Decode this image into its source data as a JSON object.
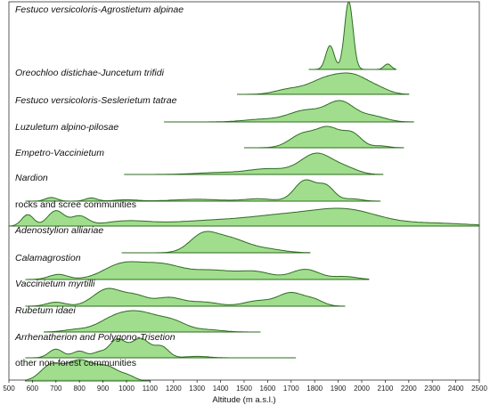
{
  "chart_data": {
    "type": "ridgeline-density",
    "xlabel": "Altitude (m a.s.l.)",
    "xlim": [
      500,
      2500
    ],
    "xticks": [
      500,
      600,
      700,
      800,
      900,
      1000,
      1100,
      1200,
      1300,
      1400,
      1500,
      1600,
      1700,
      1800,
      1900,
      2000,
      2100,
      2200,
      2300,
      2400,
      2500
    ],
    "grid": false,
    "legend": "none",
    "fill_color": "#8fd87a",
    "line_color": "#2f6b22",
    "ridges": [
      {
        "name": "Festuco versicoloris-Agrostietum alpinae",
        "italic": true,
        "range": [
          1775,
          2145
        ],
        "peaks": [
          [
            1865,
            0.35,
            18
          ],
          [
            1945,
            1.0,
            18
          ],
          [
            2110,
            0.08,
            15
          ]
        ]
      },
      {
        "name": "Oreochloo distichae-Juncetum trifidi",
        "italic": true,
        "range": [
          1470,
          2200
        ],
        "peaks": [
          [
            1680,
            0.12,
            55
          ],
          [
            1860,
            0.5,
            85
          ],
          [
            1980,
            0.4,
            65
          ],
          [
            2080,
            0.1,
            45
          ]
        ]
      },
      {
        "name": "Festuco versicoloris-Seslerietum tatrae",
        "italic": true,
        "range": [
          1160,
          2220
        ],
        "peaks": [
          [
            1580,
            0.06,
            80
          ],
          [
            1760,
            0.25,
            70
          ],
          [
            1910,
            0.45,
            60
          ],
          [
            2050,
            0.12,
            55
          ]
        ]
      },
      {
        "name": "Luzuletum alpino-pilosae",
        "italic": true,
        "range": [
          1500,
          2180
        ],
        "peaks": [
          [
            1750,
            0.3,
            55
          ],
          [
            1860,
            0.42,
            50
          ],
          [
            1960,
            0.3,
            40
          ],
          [
            2080,
            0.04,
            35
          ]
        ]
      },
      {
        "name": "Empetro-Vaccinietum",
        "italic": true,
        "range": [
          990,
          2090
        ],
        "peaks": [
          [
            1400,
            0.05,
            100
          ],
          [
            1600,
            0.14,
            80
          ],
          [
            1810,
            0.55,
            70
          ],
          [
            1940,
            0.12,
            50
          ]
        ]
      },
      {
        "name": "Nardion",
        "italic": true,
        "range": [
          570,
          2080
        ],
        "peaks": [
          [
            680,
            0.08,
            25
          ],
          [
            850,
            0.07,
            25
          ],
          [
            1000,
            0.03,
            50
          ],
          [
            1300,
            0.04,
            100
          ],
          [
            1560,
            0.05,
            60
          ],
          [
            1760,
            0.45,
            45
          ],
          [
            1850,
            0.3,
            35
          ],
          [
            1960,
            0.05,
            40
          ]
        ]
      },
      {
        "name": "rocks and scree communities",
        "italic": false,
        "range": [
          500,
          2500
        ],
        "peaks": [
          [
            580,
            0.12,
            25
          ],
          [
            700,
            0.16,
            35
          ],
          [
            800,
            0.1,
            35
          ],
          [
            1000,
            0.05,
            100
          ],
          [
            1300,
            0.04,
            150
          ],
          [
            1700,
            0.12,
            200
          ],
          [
            1950,
            0.12,
            130
          ],
          [
            2300,
            0.03,
            150
          ]
        ]
      },
      {
        "name": "Adenostylion alliariae",
        "italic": true,
        "range": [
          980,
          1780
        ],
        "peaks": [
          [
            1320,
            0.45,
            55
          ],
          [
            1430,
            0.45,
            80
          ],
          [
            1600,
            0.1,
            70
          ]
        ]
      },
      {
        "name": "Calamagrostion",
        "italic": true,
        "range": [
          570,
          2030
        ],
        "peaks": [
          [
            710,
            0.07,
            40
          ],
          [
            980,
            0.2,
            80
          ],
          [
            1150,
            0.2,
            90
          ],
          [
            1370,
            0.12,
            90
          ],
          [
            1550,
            0.1,
            70
          ],
          [
            1760,
            0.14,
            60
          ],
          [
            1930,
            0.04,
            50
          ]
        ]
      },
      {
        "name": "Vaccinietum myrtilli",
        "italic": true,
        "range": [
          570,
          1930
        ],
        "peaks": [
          [
            700,
            0.06,
            40
          ],
          [
            920,
            0.26,
            60
          ],
          [
            1040,
            0.14,
            50
          ],
          [
            1180,
            0.13,
            60
          ],
          [
            1330,
            0.06,
            60
          ],
          [
            1560,
            0.08,
            60
          ],
          [
            1700,
            0.2,
            55
          ],
          [
            1800,
            0.08,
            40
          ]
        ]
      },
      {
        "name": "Rubetum idaei",
        "italic": true,
        "range": [
          650,
          1570
        ],
        "peaks": [
          [
            780,
            0.06,
            50
          ],
          [
            940,
            0.3,
            70
          ],
          [
            1060,
            0.5,
            80
          ],
          [
            1200,
            0.25,
            60
          ],
          [
            1350,
            0.06,
            60
          ]
        ]
      },
      {
        "name": "Arrhenatherion and Polygono-Trisetion",
        "italic": true,
        "range": [
          570,
          1720
        ],
        "peaks": [
          [
            700,
            0.18,
            30
          ],
          [
            800,
            0.14,
            30
          ],
          [
            880,
            0.1,
            25
          ],
          [
            960,
            0.38,
            35
          ],
          [
            1060,
            0.4,
            40
          ],
          [
            1150,
            0.22,
            30
          ],
          [
            1300,
            0.03,
            50
          ]
        ]
      },
      {
        "name": "other non-forest communities",
        "italic": false,
        "range": [
          570,
          1100
        ],
        "peaks": [
          [
            680,
            0.35,
            45
          ],
          [
            800,
            0.45,
            55
          ],
          [
            920,
            0.3,
            50
          ],
          [
            1010,
            0.08,
            30
          ]
        ]
      }
    ]
  }
}
